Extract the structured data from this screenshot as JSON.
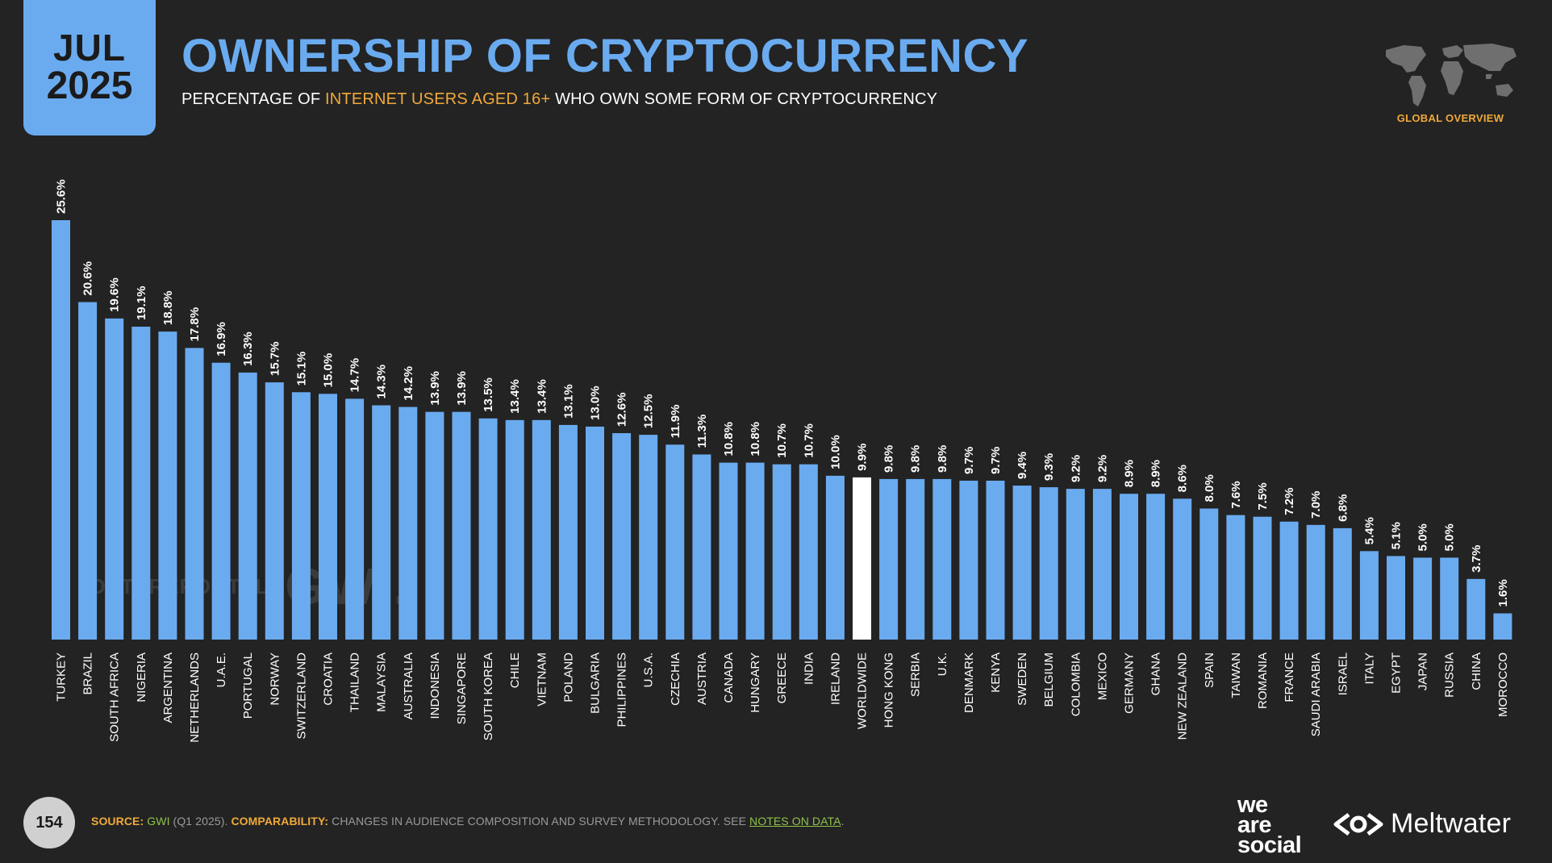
{
  "header": {
    "month": "JUL",
    "year": "2025",
    "title": "OWNERSHIP OF CRYPTOCURRENCY",
    "subtitle_pre": "PERCENTAGE OF ",
    "subtitle_highlight": "INTERNET USERS AGED 16+",
    "subtitle_post": " WHO OWN SOME FORM OF CRYPTOCURRENCY",
    "section_label": "GLOBAL OVERVIEW"
  },
  "watermark": {
    "datareportal": "DATAREPORTAL",
    "gwi": "GWI."
  },
  "footer": {
    "page_number": "154",
    "source_label": "SOURCE:",
    "source_name": "GWI",
    "source_detail": " (Q1 2025). ",
    "comparability_label": "COMPARABILITY:",
    "comparability_text": " CHANGES IN AUDIENCE COMPOSITION AND SURVEY METHODOLOGY. SEE ",
    "notes_link": "NOTES ON DATA",
    "notes_end": ".",
    "brand_we": "we",
    "brand_are": "are",
    "brand_social": "social",
    "brand_meltwater": "Meltwater"
  },
  "colors": {
    "bar": "#6aabf0",
    "highlight_bar": "#ffffff",
    "accent": "#f0a93a",
    "background": "#232323"
  },
  "chart_data": {
    "type": "bar",
    "title": "OWNERSHIP OF CRYPTOCURRENCY",
    "xlabel": "",
    "ylabel": "",
    "ylim": [
      0,
      25.6
    ],
    "unit": "%",
    "highlight": "WORLDWIDE",
    "categories": [
      "TURKEY",
      "BRAZIL",
      "SOUTH AFRICA",
      "NIGERIA",
      "ARGENTINA",
      "NETHERLANDS",
      "U.A.E.",
      "PORTUGAL",
      "NORWAY",
      "SWITZERLAND",
      "CROATIA",
      "THAILAND",
      "MALAYSIA",
      "AUSTRALIA",
      "INDONESIA",
      "SINGAPORE",
      "SOUTH KOREA",
      "CHILE",
      "VIETNAM",
      "POLAND",
      "BULGARIA",
      "PHILIPPINES",
      "U.S.A.",
      "CZECHIA",
      "AUSTRIA",
      "CANADA",
      "HUNGARY",
      "GREECE",
      "INDIA",
      "IRELAND",
      "WORLDWIDE",
      "HONG KONG",
      "SERBIA",
      "U.K.",
      "DENMARK",
      "KENYA",
      "SWEDEN",
      "BELGIUM",
      "COLOMBIA",
      "MEXICO",
      "GERMANY",
      "GHANA",
      "NEW ZEALAND",
      "SPAIN",
      "TAIWAN",
      "ROMANIA",
      "FRANCE",
      "SAUDI ARABIA",
      "ISRAEL",
      "ITALY",
      "EGYPT",
      "JAPAN",
      "RUSSIA",
      "CHINA",
      "MOROCCO"
    ],
    "values": [
      25.6,
      20.6,
      19.6,
      19.1,
      18.8,
      17.8,
      16.9,
      16.3,
      15.7,
      15.1,
      15.0,
      14.7,
      14.3,
      14.2,
      13.9,
      13.9,
      13.5,
      13.4,
      13.4,
      13.1,
      13.0,
      12.6,
      12.5,
      11.9,
      11.3,
      10.8,
      10.8,
      10.7,
      10.7,
      10.0,
      9.9,
      9.8,
      9.8,
      9.8,
      9.7,
      9.7,
      9.4,
      9.3,
      9.2,
      9.2,
      8.9,
      8.9,
      8.6,
      8.0,
      7.6,
      7.5,
      7.2,
      7.0,
      6.8,
      5.4,
      5.1,
      5.0,
      5.0,
      3.7,
      1.6
    ],
    "labels": [
      "25.6%",
      "20.6%",
      "19.6%",
      "19.1%",
      "18.8%",
      "17.8%",
      "16.9%",
      "16.3%",
      "15.7%",
      "15.1%",
      "15.0%",
      "14.7%",
      "14.3%",
      "14.2%",
      "13.9%",
      "13.9%",
      "13.5%",
      "13.4%",
      "13.4%",
      "13.1%",
      "13.0%",
      "12.6%",
      "12.5%",
      "11.9%",
      "11.3%",
      "10.8%",
      "10.8%",
      "10.7%",
      "10.7%",
      "10.0%",
      "9.9%",
      "9.8%",
      "9.8%",
      "9.8%",
      "9.7%",
      "9.7%",
      "9.4%",
      "9.3%",
      "9.2%",
      "9.2%",
      "8.9%",
      "8.9%",
      "8.6%",
      "8.0%",
      "7.6%",
      "7.5%",
      "7.2%",
      "7.0%",
      "6.8%",
      "5.4%",
      "5.1%",
      "5.0%",
      "5.0%",
      "3.7%",
      "1.6%"
    ]
  }
}
